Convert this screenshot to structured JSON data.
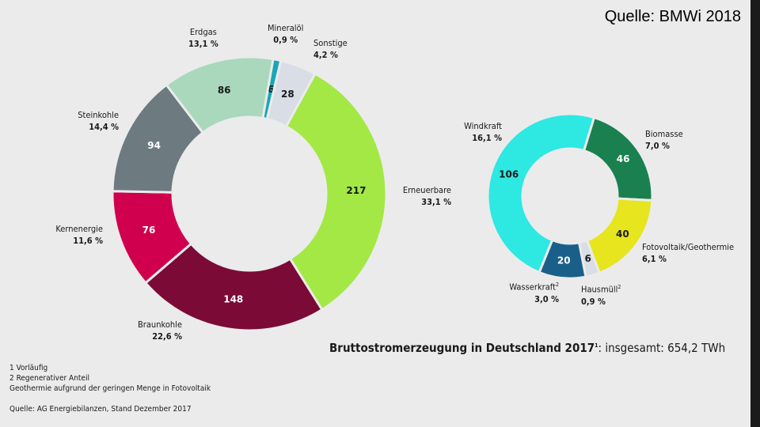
{
  "source_top": "Quelle: BMWi 2018",
  "title_bold": "Bruttostromerzeugung in Deutschland 2017",
  "title_sup": "1",
  "title_rest": ": insgesamt: 654,2 TWh",
  "footnotes": [
    "1  Vorläufig",
    "2  Regenerativer Anteil",
    "Geothermie aufgrund der geringen Menge in Fotovoltaik"
  ],
  "source_bottom": "Quelle: AG Energiebilanzen, Stand Dezember 2017",
  "chart_data": [
    {
      "type": "pie",
      "variant": "donut",
      "unit": "TWh",
      "start_angle_deg": 10,
      "slices": [
        {
          "name": "Mineralöl",
          "value": 6,
          "percent": "0,9 %",
          "color": "#1aa6b7"
        },
        {
          "name": "Sonstige",
          "value": 28,
          "percent": "4,2 %",
          "color": "#d9dde5"
        },
        {
          "name": "Erneuerbare",
          "value": 217,
          "percent": "33,1 %",
          "color": "#a3e845"
        },
        {
          "name": "Braunkohle",
          "value": 148,
          "percent": "22,6 %",
          "color": "#7b0a36"
        },
        {
          "name": "Kernenergie",
          "value": 76,
          "percent": "11,6 %",
          "color": "#d1004f"
        },
        {
          "name": "Steinkohle",
          "value": 94,
          "percent": "14,4 %",
          "color": "#6d7a80"
        },
        {
          "name": "Erdgas",
          "value": 86,
          "percent": "13,1 %",
          "color": "#a9d8bd"
        }
      ]
    },
    {
      "type": "pie",
      "variant": "donut",
      "unit": "TWh",
      "start_angle_deg": 17,
      "slices": [
        {
          "name": "Biomasse",
          "value": 46,
          "percent": "7,0 %",
          "color": "#1a8050"
        },
        {
          "name": "Fotovoltaik/Geothermie",
          "value": 40,
          "percent": "6,1 %",
          "color": "#e6e51e"
        },
        {
          "name": "Hausmüll",
          "sup": "2",
          "value": 6,
          "percent": "0,9 %",
          "color": "#d9dde5"
        },
        {
          "name": "Wasserkraft",
          "sup": "2",
          "value": 20,
          "percent": "3,0 %",
          "color": "#1a5f8a"
        },
        {
          "name": "Windkraft",
          "value": 106,
          "percent": "16,1 %",
          "color": "#2ee8e2"
        }
      ]
    }
  ]
}
